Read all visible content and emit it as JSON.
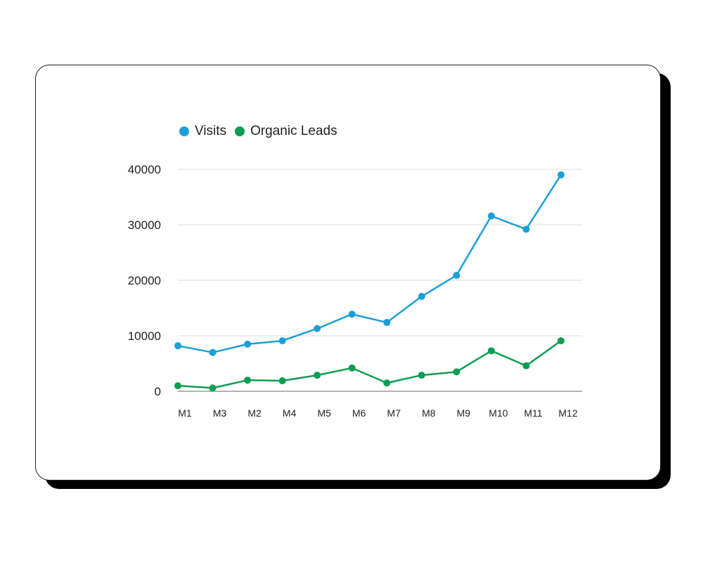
{
  "chart_data": {
    "type": "line",
    "title": "",
    "xlabel": "",
    "ylabel": "",
    "categories": [
      "M1",
      "M3",
      "M2",
      "M4",
      "M5",
      "M6",
      "M7",
      "M8",
      "M9",
      "M10",
      "M11",
      "M12"
    ],
    "series": [
      {
        "name": "Visits",
        "color": "#1a9fd9",
        "values": [
          8200,
          7000,
          8500,
          9100,
          11300,
          13900,
          12400,
          17100,
          20900,
          31600,
          29200,
          39000
        ]
      },
      {
        "name": "Organic Leads",
        "color": "#0c9d52",
        "values": [
          1000,
          600,
          2000,
          1900,
          2900,
          4200,
          1500,
          2900,
          3500,
          7300,
          4600,
          9100
        ]
      }
    ],
    "ylim": [
      0,
      40000
    ],
    "yticks": [
      "0",
      "10000",
      "20000",
      "30000",
      "40000"
    ],
    "grid": true,
    "legend": "top-left"
  }
}
